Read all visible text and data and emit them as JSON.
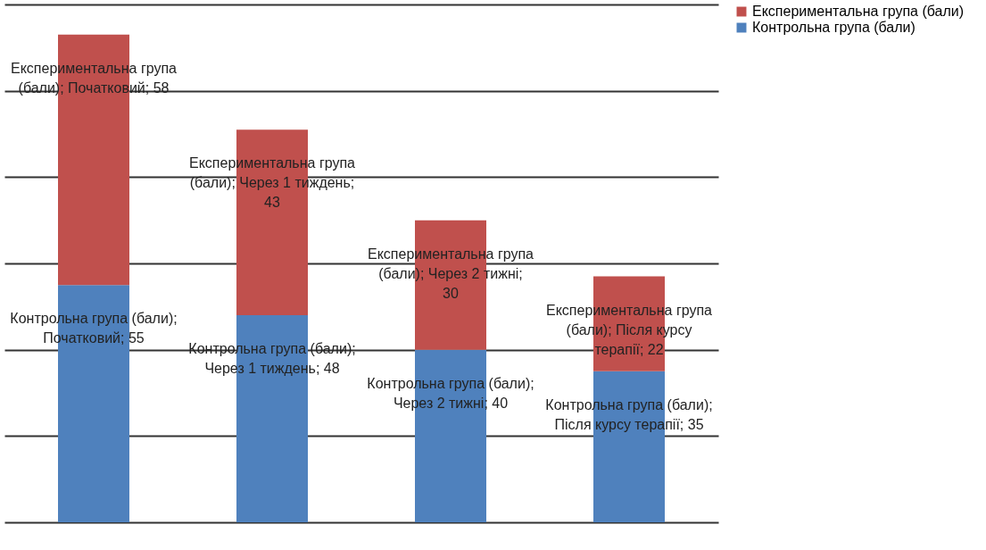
{
  "chart_data": {
    "type": "bar",
    "stacked": true,
    "categories": [
      null,
      null,
      null,
      null
    ],
    "series": [
      {
        "name": "Контрольна група (бали)",
        "color": "#4f81bd",
        "values": [
          55,
          48,
          40,
          35
        ],
        "value_labels": [
          "Контрольна група (бали); Початковий; 55",
          "Контрольна група (бали); Через 1 тиждень; 48",
          "Контрольна група (бали); Через 2 тижні; 40",
          "Контрольна група (бали); Після курсу терапії; 35"
        ]
      },
      {
        "name": "Експериментальна група (бали)",
        "color": "#c0504d",
        "values": [
          58,
          43,
          30,
          22
        ],
        "value_labels": [
          "Експериментальна група (бали); Початковий; 58",
          "Експериментальна група (бали); Через 1 тиждень; 43",
          "Експериментальна група (бали); Через 2 тижні; 30",
          "Експериментальна група (бали); Після курсу терапії; 22"
        ]
      }
    ],
    "ylim": [
      0,
      120
    ],
    "yticks": [
      {
        "value": 0,
        "label": null
      },
      {
        "value": 20,
        "label": null
      },
      {
        "value": 40,
        "label": null
      },
      {
        "value": 60,
        "label": null
      },
      {
        "value": 80,
        "label": null
      },
      {
        "value": 100,
        "label": null
      },
      {
        "value": 120,
        "label": null
      }
    ],
    "grid": "y",
    "tick_labels": false,
    "legend": "right"
  }
}
